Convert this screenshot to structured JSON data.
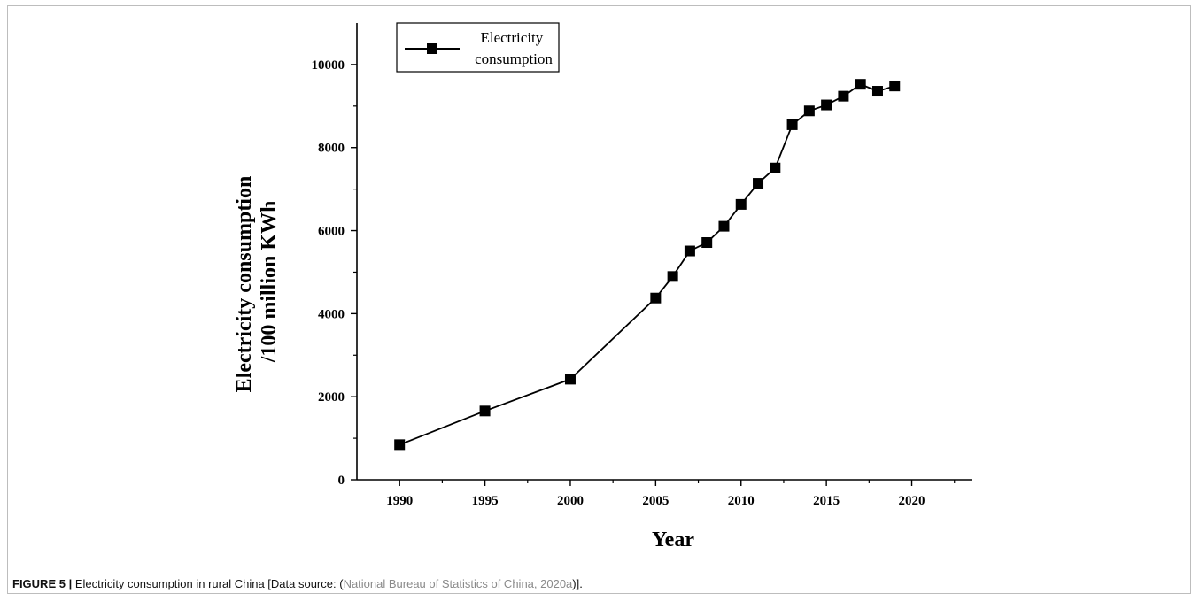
{
  "chart_data": {
    "type": "line",
    "title": "",
    "xlabel": "Year",
    "ylabel_lines": [
      "Electricity consumption",
      "/100 million KWh"
    ],
    "xlim": [
      1987.5,
      2023.5
    ],
    "ylim": [
      0,
      11000
    ],
    "x_ticks": [
      1990,
      1995,
      2000,
      2005,
      2010,
      2015,
      2020
    ],
    "x_tick_labels": [
      "1990",
      "1995",
      "2000",
      "2005",
      "2010",
      "2015",
      "2020"
    ],
    "y_ticks": [
      0,
      2000,
      4000,
      6000,
      8000,
      10000
    ],
    "y_tick_labels": [
      "0",
      "2000",
      "4000",
      "6000",
      "8000",
      "10000"
    ],
    "grid": false,
    "legend_position": "top-left",
    "series": [
      {
        "name_lines": [
          "Electricity",
          "consumption"
        ],
        "marker": "square",
        "color": "#000000",
        "x": [
          1990,
          1995,
          2000,
          2005,
          2006,
          2007,
          2008,
          2009,
          2010,
          2011,
          2012,
          2013,
          2014,
          2015,
          2016,
          2017,
          2018,
          2019
        ],
        "y": [
          845,
          1656,
          2422,
          4376,
          4896,
          5510,
          5713,
          6105,
          6632,
          7140,
          7509,
          8550,
          8884,
          9027,
          9238,
          9525,
          9358,
          9483
        ]
      }
    ]
  },
  "caption": {
    "label": "FIGURE 5 |",
    "text": " Electricity consumption in rural China [Data source: (",
    "reference": "National Bureau of Statistics of China, 2020a",
    "suffix": ")]."
  }
}
